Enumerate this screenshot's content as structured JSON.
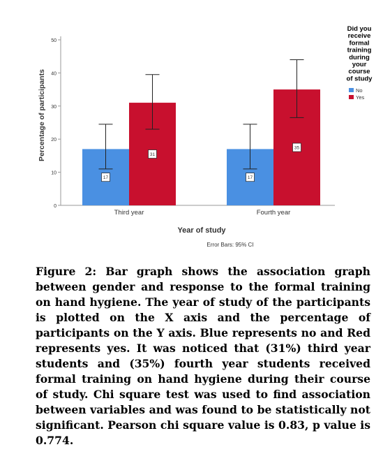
{
  "chart_data": {
    "type": "bar",
    "categories": [
      "Third year",
      "Fourth year"
    ],
    "series": [
      {
        "name": "No",
        "values": [
          17,
          17
        ],
        "ci_low": [
          11,
          11
        ],
        "ci_high": [
          24.5,
          24.5
        ],
        "color": "#4A90E2"
      },
      {
        "name": "Yes",
        "values": [
          31,
          35
        ],
        "ci_low": [
          23,
          26.5
        ],
        "ci_high": [
          39.5,
          44
        ],
        "color": "#C8102E"
      }
    ],
    "data_labels": [
      [
        "17",
        "17"
      ],
      [
        "31",
        "35"
      ]
    ],
    "yticks": [
      "0",
      "10",
      "20",
      "30",
      "40",
      "50"
    ],
    "ylim": [
      0,
      50
    ],
    "xlabel": "Year of study",
    "ylabel": "Percentage of participants",
    "legend_title": "Did you receive formal training during your course of study",
    "legend_title_lines": [
      "Did you",
      "receive",
      "formal",
      "training",
      "during",
      "your",
      "course",
      "of study"
    ],
    "legend_placement": "right",
    "footnote": "Error Bars: 95% CI",
    "grid": false
  },
  "caption": {
    "label": "Figure 2:",
    "text": "Bar graph shows the association graph between gender and response to the formal training on hand hygiene. The year of study of the participants is plotted on the X axis and the percentage of participants on the Y axis. Blue represents no and Red represents yes. It was noticed that (31%) third year students and (35%) fourth year students received formal training on hand hygiene during their course of study. Chi square test was used to find association between variables and was found to be statistically not significant. Pearson chi square value is 0.83, p value is 0.774."
  }
}
